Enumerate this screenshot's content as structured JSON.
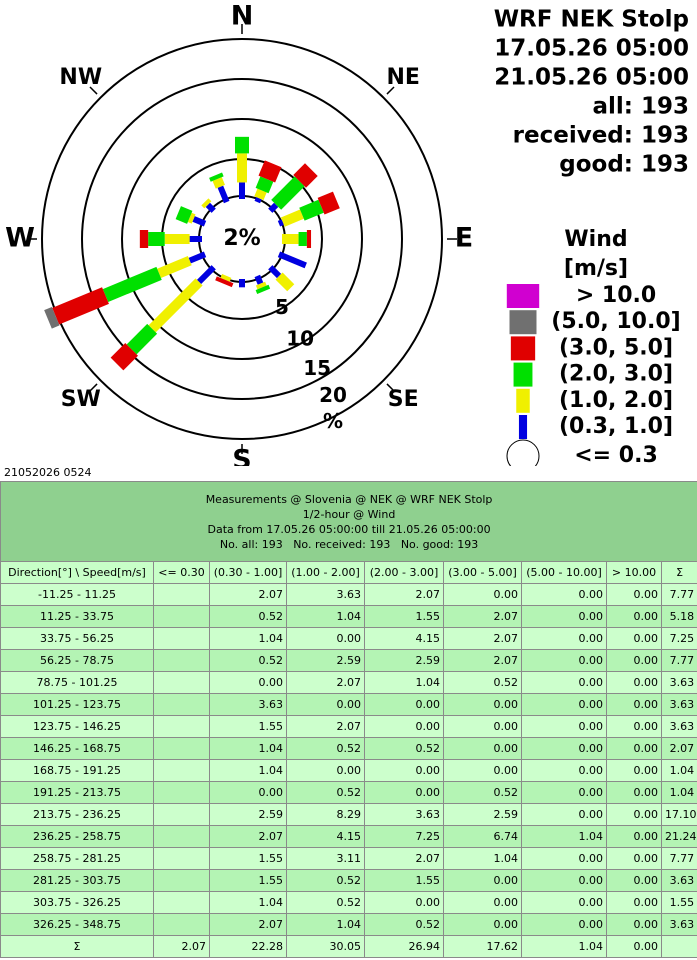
{
  "chart_data": {
    "type": "windrose",
    "title": "WRF NEK Stolp",
    "period": [
      "17.05.26 05:00",
      "21.05.26 05:00"
    ],
    "counts": [
      "all: 193",
      "received: 193",
      "good: 193"
    ],
    "compass": [
      "N",
      "NE",
      "E",
      "SE",
      "S",
      "SW",
      "W",
      "NW"
    ],
    "calm": {
      "value": 2.07,
      "label": "2%"
    },
    "calm_name": "<= 0.3",
    "calm_color": "#ffffff",
    "rlim": [
      0,
      20
    ],
    "rticks": [
      5,
      10,
      15,
      20
    ],
    "runit": "%",
    "legend_title": [
      "Wind",
      "[m/s]"
    ],
    "series": [
      {
        "name": "> 10.0",
        "color": "#d000d0",
        "values": [
          0,
          0,
          0,
          0,
          0,
          0,
          0,
          0,
          0,
          0,
          0,
          0,
          0,
          0,
          0,
          0
        ]
      },
      {
        "name": "(5.0, 10.0]",
        "color": "#707070",
        "values": [
          0,
          0,
          0,
          0,
          0,
          0,
          0,
          0,
          0,
          0,
          0,
          1.04,
          0,
          0,
          0,
          0
        ]
      },
      {
        "name": "(3.0, 5.0]",
        "color": "#e00000",
        "values": [
          0,
          2.07,
          2.07,
          2.07,
          0.52,
          0,
          0,
          0,
          0,
          0.52,
          2.59,
          6.74,
          1.04,
          0,
          0,
          0
        ]
      },
      {
        "name": "(2.0, 3.0]",
        "color": "#00e000",
        "values": [
          2.07,
          1.55,
          4.15,
          2.59,
          1.04,
          0,
          0,
          0.52,
          0,
          0,
          3.63,
          7.25,
          2.07,
          1.55,
          0,
          0.52
        ]
      },
      {
        "name": "(1.0, 2.0]",
        "color": "#f0f000",
        "values": [
          3.63,
          1.04,
          0,
          2.59,
          2.07,
          0,
          2.07,
          0.52,
          0,
          0.52,
          8.29,
          4.15,
          3.11,
          0.52,
          0.52,
          1.04
        ]
      },
      {
        "name": "(0.3, 1.0]",
        "color": "#0000e0",
        "values": [
          2.07,
          0.52,
          1.04,
          0.52,
          0,
          3.63,
          1.55,
          1.04,
          1.04,
          0,
          2.59,
          2.07,
          1.55,
          1.55,
          1.04,
          2.07
        ]
      }
    ]
  },
  "stamp": "21052026 0524",
  "table": {
    "header": [
      "Measurements @ Slovenia @ NEK @ WRF NEK Stolp",
      "1/2-hour @ Wind",
      "Data from 17.05.26 05:00:00 till 21.05.26 05:00:00",
      "No. all: 193   No. received: 193   No. good: 193"
    ],
    "columns": [
      "Direction[°] \\ Speed[m/s]",
      "<= 0.30",
      "(0.30 - 1.00]",
      "(1.00 - 2.00]",
      "(2.00 - 3.00]",
      "(3.00 - 5.00]",
      "(5.00 - 10.00]",
      "> 10.00",
      "Σ"
    ],
    "rows": [
      [
        "-11.25 - 11.25",
        null,
        "2.07",
        "3.63",
        "2.07",
        "0.00",
        "0.00",
        "0.00",
        "7.77"
      ],
      [
        "11.25 - 33.75",
        null,
        "0.52",
        "1.04",
        "1.55",
        "2.07",
        "0.00",
        "0.00",
        "5.18"
      ],
      [
        "33.75 - 56.25",
        null,
        "1.04",
        "0.00",
        "4.15",
        "2.07",
        "0.00",
        "0.00",
        "7.25"
      ],
      [
        "56.25 - 78.75",
        null,
        "0.52",
        "2.59",
        "2.59",
        "2.07",
        "0.00",
        "0.00",
        "7.77"
      ],
      [
        "78.75 - 101.25",
        null,
        "0.00",
        "2.07",
        "1.04",
        "0.52",
        "0.00",
        "0.00",
        "3.63"
      ],
      [
        "101.25 - 123.75",
        null,
        "3.63",
        "0.00",
        "0.00",
        "0.00",
        "0.00",
        "0.00",
        "3.63"
      ],
      [
        "123.75 - 146.25",
        null,
        "1.55",
        "2.07",
        "0.00",
        "0.00",
        "0.00",
        "0.00",
        "3.63"
      ],
      [
        "146.25 - 168.75",
        null,
        "1.04",
        "0.52",
        "0.52",
        "0.00",
        "0.00",
        "0.00",
        "2.07"
      ],
      [
        "168.75 - 191.25",
        null,
        "1.04",
        "0.00",
        "0.00",
        "0.00",
        "0.00",
        "0.00",
        "1.04"
      ],
      [
        "191.25 - 213.75",
        null,
        "0.00",
        "0.52",
        "0.00",
        "0.52",
        "0.00",
        "0.00",
        "1.04"
      ],
      [
        "213.75 - 236.25",
        null,
        "2.59",
        "8.29",
        "3.63",
        "2.59",
        "0.00",
        "0.00",
        "17.10"
      ],
      [
        "236.25 - 258.75",
        null,
        "2.07",
        "4.15",
        "7.25",
        "6.74",
        "1.04",
        "0.00",
        "21.24"
      ],
      [
        "258.75 - 281.25",
        null,
        "1.55",
        "3.11",
        "2.07",
        "1.04",
        "0.00",
        "0.00",
        "7.77"
      ],
      [
        "281.25 - 303.75",
        null,
        "1.55",
        "0.52",
        "1.55",
        "0.00",
        "0.00",
        "0.00",
        "3.63"
      ],
      [
        "303.75 - 326.25",
        null,
        "1.04",
        "0.52",
        "0.00",
        "0.00",
        "0.00",
        "0.00",
        "1.55"
      ],
      [
        "326.25 - 348.75",
        null,
        "2.07",
        "1.04",
        "0.52",
        "0.00",
        "0.00",
        "0.00",
        "3.63"
      ],
      [
        "Σ",
        "2.07",
        "22.28",
        "30.05",
        "26.94",
        "17.62",
        "1.04",
        "0.00",
        null
      ]
    ]
  }
}
